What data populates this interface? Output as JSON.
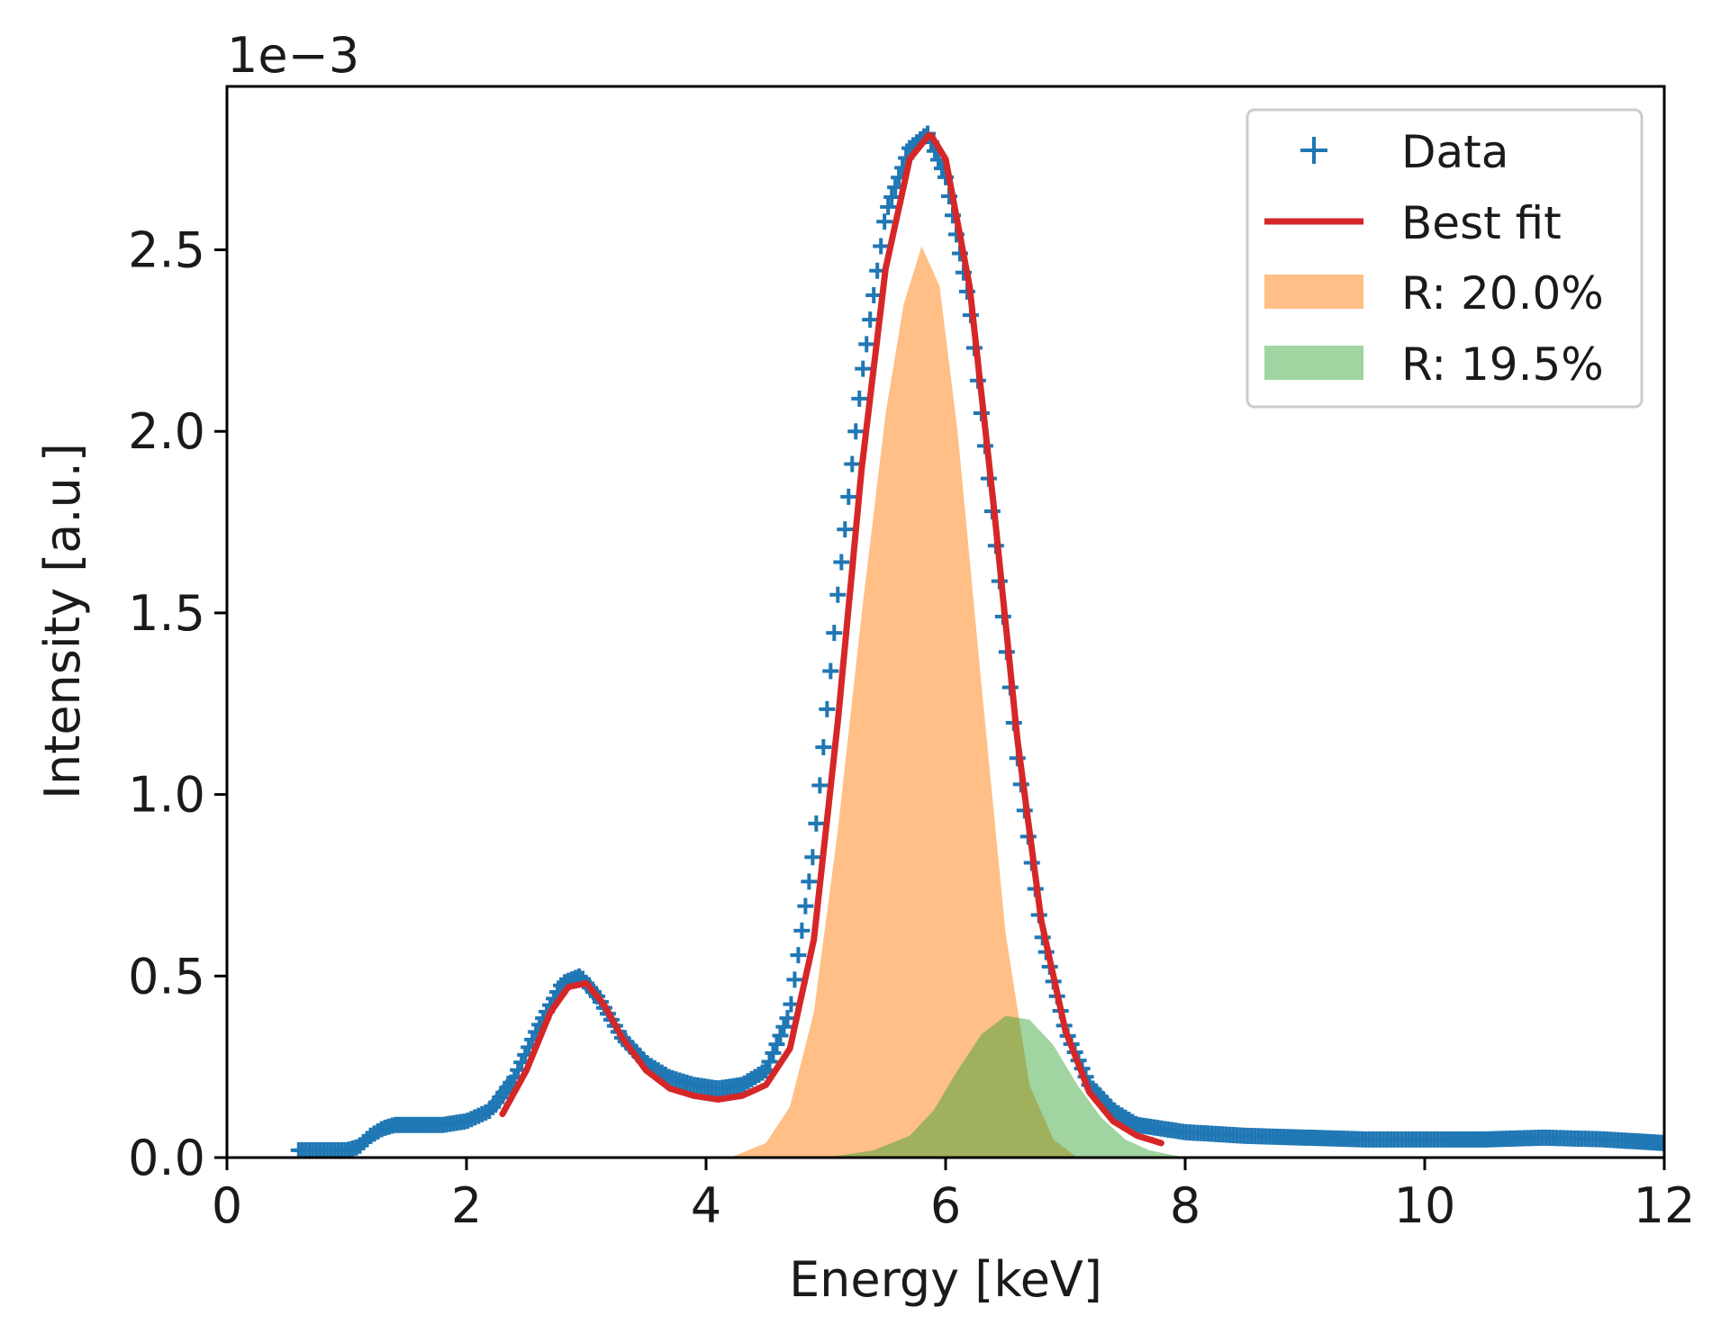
{
  "chart_data": {
    "type": "line",
    "title": "",
    "xlabel": "Energy [keV]",
    "ylabel": "Intensity [a.u.]",
    "offset_label": "1e−3",
    "xlim": [
      0,
      12
    ],
    "ylim": [
      0,
      2.95
    ],
    "y_scale_exponent": -3,
    "xticks": [
      0,
      2,
      4,
      6,
      8,
      10,
      12
    ],
    "xtick_labels": [
      "0",
      "2",
      "4",
      "6",
      "8",
      "10",
      "12"
    ],
    "yticks": [
      0.0,
      0.5,
      1.0,
      1.5,
      2.0,
      2.5
    ],
    "ytick_labels": [
      "0.0",
      "0.5",
      "1.0",
      "1.5",
      "2.0",
      "2.5"
    ],
    "grid": false,
    "legend_position": "top-right",
    "colors": {
      "data": "#1f77b4",
      "fit": "#d62728",
      "peak1": "#ff7f0e",
      "peak2": "#2ca02c"
    },
    "series": [
      {
        "name": "Data",
        "kind": "markers",
        "marker": "+",
        "x": [
          0.6,
          1.0,
          1.1,
          1.2,
          1.3,
          1.4,
          1.6,
          1.8,
          2.0,
          2.2,
          2.4,
          2.6,
          2.8,
          2.95,
          3.1,
          3.3,
          3.5,
          3.7,
          3.9,
          4.1,
          4.3,
          4.5,
          4.7,
          4.9,
          5.1,
          5.3,
          5.5,
          5.7,
          5.85,
          6.0,
          6.2,
          6.4,
          6.6,
          6.8,
          7.0,
          7.2,
          7.4,
          7.6,
          7.8,
          8.0,
          8.5,
          9.0,
          9.5,
          10.0,
          10.5,
          11.0,
          11.5,
          12.0
        ],
        "y": [
          0.02,
          0.02,
          0.03,
          0.06,
          0.08,
          0.09,
          0.09,
          0.09,
          0.1,
          0.13,
          0.22,
          0.36,
          0.48,
          0.5,
          0.44,
          0.33,
          0.26,
          0.22,
          0.2,
          0.19,
          0.2,
          0.24,
          0.4,
          0.85,
          1.55,
          2.15,
          2.6,
          2.78,
          2.82,
          2.7,
          2.35,
          1.75,
          1.1,
          0.62,
          0.35,
          0.2,
          0.13,
          0.09,
          0.08,
          0.07,
          0.06,
          0.055,
          0.05,
          0.05,
          0.05,
          0.055,
          0.05,
          0.04
        ]
      },
      {
        "name": "Best fit",
        "kind": "line",
        "x": [
          2.3,
          2.5,
          2.7,
          2.85,
          3.0,
          3.15,
          3.3,
          3.5,
          3.7,
          3.9,
          4.1,
          4.3,
          4.5,
          4.7,
          4.9,
          5.1,
          5.3,
          5.5,
          5.7,
          5.87,
          6.0,
          6.2,
          6.4,
          6.6,
          6.8,
          7.0,
          7.2,
          7.4,
          7.6,
          7.8
        ],
        "y": [
          0.12,
          0.24,
          0.4,
          0.47,
          0.48,
          0.42,
          0.33,
          0.24,
          0.19,
          0.17,
          0.16,
          0.17,
          0.2,
          0.3,
          0.6,
          1.2,
          1.9,
          2.45,
          2.75,
          2.82,
          2.75,
          2.4,
          1.8,
          1.15,
          0.65,
          0.35,
          0.18,
          0.1,
          0.06,
          0.04
        ]
      },
      {
        "name": "R: 20.0%",
        "kind": "area",
        "x": [
          4.2,
          4.5,
          4.7,
          4.9,
          5.1,
          5.3,
          5.5,
          5.65,
          5.8,
          5.95,
          6.1,
          6.3,
          6.5,
          6.7,
          6.9,
          7.1
        ],
        "y": [
          0.0,
          0.04,
          0.14,
          0.4,
          0.9,
          1.5,
          2.05,
          2.35,
          2.51,
          2.4,
          2.0,
          1.3,
          0.62,
          0.2,
          0.05,
          0.0
        ]
      },
      {
        "name": "R: 19.5%",
        "kind": "area",
        "x": [
          5.0,
          5.4,
          5.7,
          5.9,
          6.1,
          6.3,
          6.5,
          6.7,
          6.9,
          7.1,
          7.3,
          7.5,
          7.7,
          8.0
        ],
        "y": [
          0.0,
          0.02,
          0.06,
          0.13,
          0.24,
          0.34,
          0.39,
          0.38,
          0.31,
          0.2,
          0.11,
          0.05,
          0.02,
          0.0
        ]
      }
    ]
  }
}
